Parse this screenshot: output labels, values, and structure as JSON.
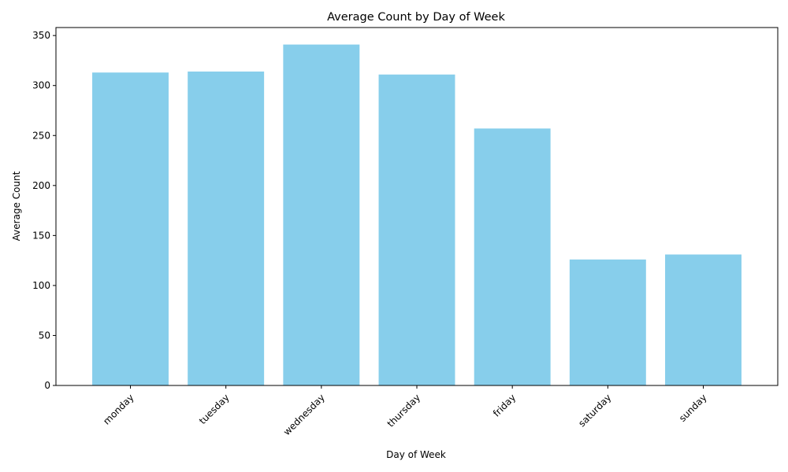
{
  "chart_data": {
    "type": "bar",
    "title": "Average Count by Day of Week",
    "xlabel": "Day of Week",
    "ylabel": "Average Count",
    "categories": [
      "monday",
      "tuesday",
      "wednesday",
      "thursday",
      "friday",
      "saturday",
      "sunday"
    ],
    "values": [
      313,
      314,
      341,
      311,
      257,
      126,
      131
    ],
    "ylim": [
      0,
      358
    ],
    "yticks": [
      0,
      50,
      100,
      150,
      200,
      250,
      300,
      350
    ],
    "bar_color": "#87CEEB",
    "grid": false,
    "legend": "none",
    "xtick_rotation_deg": 45
  }
}
